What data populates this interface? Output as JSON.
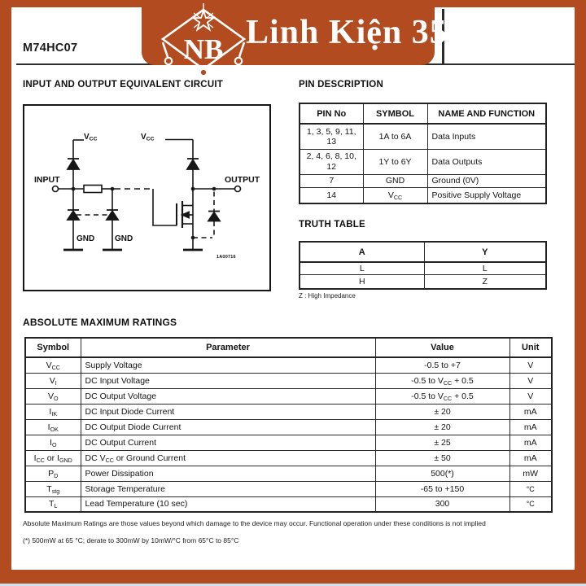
{
  "colors": {
    "accent": "#b24c20",
    "strip": "#cfe3ee"
  },
  "header": {
    "part_number": "M74HC07",
    "logo_monogram": "NB",
    "brand_name": "Linh Kiện 35"
  },
  "equivalent_circuit": {
    "heading": "INPUT AND OUTPUT EQUIVALENT CIRCUIT",
    "labels": {
      "input": "INPUT",
      "output": "OUTPUT",
      "vcc": [
        {
          "t": "V"
        },
        {
          "sub": "CC"
        }
      ],
      "gnd": "GND",
      "figure_code": "1A00716"
    }
  },
  "pin_description": {
    "heading": "PIN DESCRIPTION",
    "columns": [
      "PIN No",
      "SYMBOL",
      "NAME AND FUNCTION"
    ],
    "rows": [
      {
        "pin": "1, 3, 5, 9, 11, 13",
        "symbol": "1A to 6A",
        "name": "Data Inputs"
      },
      {
        "pin": "2, 4, 6, 8, 10, 12",
        "symbol": "1Y to 6Y",
        "name": "Data Outputs"
      },
      {
        "pin": "7",
        "symbol": "GND",
        "name": "Ground (0V)"
      },
      {
        "pin": "14",
        "symbol": [
          {
            "t": "V"
          },
          {
            "sub": "CC"
          }
        ],
        "name": "Positive Supply Voltage"
      }
    ]
  },
  "truth_table": {
    "heading": "TRUTH TABLE",
    "columns": [
      "A",
      "Y"
    ],
    "rows": [
      {
        "a": "L",
        "y": "L"
      },
      {
        "a": "H",
        "y": "Z"
      }
    ],
    "footnote": "Z : High Impedance"
  },
  "amr": {
    "heading": "ABSOLUTE MAXIMUM RATINGS",
    "columns": [
      "Symbol",
      "Parameter",
      "Value",
      "Unit"
    ],
    "rows": [
      {
        "sym": [
          {
            "t": "V"
          },
          {
            "sub": "CC"
          }
        ],
        "param": "Supply Voltage",
        "value": "-0.5 to +7",
        "unit": "V"
      },
      {
        "sym": [
          {
            "t": "V"
          },
          {
            "sub": "I"
          }
        ],
        "param": "DC Input Voltage",
        "value": [
          {
            "t": "-0.5 to V"
          },
          {
            "sub": "CC"
          },
          {
            "t": " + 0.5"
          }
        ],
        "unit": "V"
      },
      {
        "sym": [
          {
            "t": "V"
          },
          {
            "sub": "O"
          }
        ],
        "param": "DC Output Voltage",
        "value": [
          {
            "t": "-0.5 to V"
          },
          {
            "sub": "CC"
          },
          {
            "t": " + 0.5"
          }
        ],
        "unit": "V"
      },
      {
        "sym": [
          {
            "t": "I"
          },
          {
            "sub": "IK"
          }
        ],
        "param": "DC Input Diode Current",
        "value": "± 20",
        "unit": "mA"
      },
      {
        "sym": [
          {
            "t": "I"
          },
          {
            "sub": "OK"
          }
        ],
        "param": "DC Output Diode Current",
        "value": "± 20",
        "unit": "mA"
      },
      {
        "sym": [
          {
            "t": "I"
          },
          {
            "sub": "O"
          }
        ],
        "param": "DC Output Current",
        "value": "± 25",
        "unit": "mA"
      },
      {
        "sym": [
          {
            "t": "I"
          },
          {
            "sub": "CC"
          },
          {
            "t": " or I"
          },
          {
            "sub": "GND"
          }
        ],
        "param": [
          {
            "t": "DC V"
          },
          {
            "sub": "CC"
          },
          {
            "t": " or Ground Current"
          }
        ],
        "value": "± 50",
        "unit": "mA"
      },
      {
        "sym": [
          {
            "t": "P"
          },
          {
            "sub": "D"
          }
        ],
        "param": "Power Dissipation",
        "value": "500(*)",
        "unit": "mW"
      },
      {
        "sym": [
          {
            "t": "T"
          },
          {
            "sub": "stg"
          }
        ],
        "param": "Storage Temperature",
        "value": "-65 to +150",
        "unit": "°C"
      },
      {
        "sym": [
          {
            "t": "T"
          },
          {
            "sub": "L"
          }
        ],
        "param": "Lead Temperature (10 sec)",
        "value": "300",
        "unit": "°C"
      }
    ],
    "footnote_main": "Absolute Maximum Ratings are those values beyond which damage to the device may occur. Functional operation under these conditions is not implied",
    "footnote_star": "(*) 500mW at 65 °C; derate to 300mW by 10mW/°C from 65°C to 85°C"
  }
}
